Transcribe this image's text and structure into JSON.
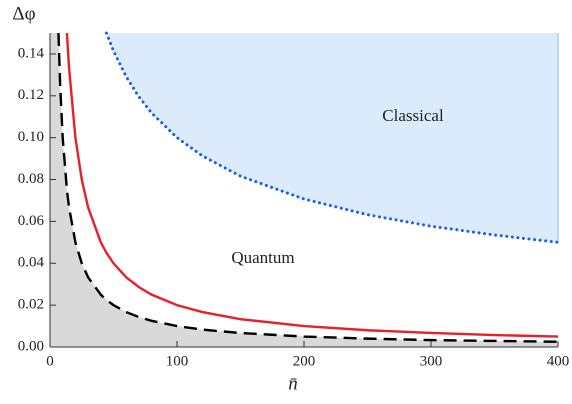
{
  "chart_data": {
    "type": "line",
    "x_label": "n̄",
    "y_label": "Δφ",
    "x": [
      6.67,
      8,
      10,
      13.33,
      15,
      20,
      25,
      30,
      40,
      44.44,
      50,
      60,
      70,
      80,
      100,
      120,
      150,
      200,
      250,
      300,
      350,
      400
    ],
    "series": [
      {
        "color": "#000000",
        "style": "dashed",
        "fill": "below",
        "fill_color": "#d9d9d9",
        "values": [
          0.15,
          0.125,
          0.1,
          0.075,
          0.0667,
          0.05,
          0.04,
          0.0333,
          0.025,
          0.0225,
          0.02,
          0.0167,
          0.0143,
          0.0125,
          0.01,
          0.0083,
          0.0067,
          0.005,
          0.004,
          0.0033,
          0.0029,
          0.0025
        ]
      },
      {
        "color": "#e8202a",
        "style": "solid",
        "values": [
          null,
          null,
          null,
          0.15,
          0.1333,
          0.1,
          0.08,
          0.0667,
          0.05,
          0.045,
          0.04,
          0.0333,
          0.0286,
          0.025,
          0.02,
          0.0167,
          0.0133,
          0.01,
          0.008,
          0.0067,
          0.0057,
          0.005
        ]
      },
      {
        "color": "#1a5ee8",
        "style": "dotted",
        "fill": "above",
        "fill_color": "#dcebfb",
        "values": [
          null,
          null,
          null,
          null,
          null,
          null,
          null,
          null,
          null,
          0.15,
          0.1414,
          0.1291,
          0.1195,
          0.1118,
          0.1,
          0.0913,
          0.0816,
          0.0707,
          0.0632,
          0.0577,
          0.0535,
          0.05
        ]
      }
    ],
    "annotations": [
      "Classical",
      "Quantum"
    ],
    "xlim": [
      0,
      400
    ],
    "ylim": [
      0,
      0.15
    ],
    "xticks": [
      0,
      100,
      200,
      300,
      400
    ],
    "yticks": [
      {
        "value": 0,
        "label": "0.00"
      },
      {
        "value": 0.02,
        "label": "0.02"
      },
      {
        "value": 0.04,
        "label": "0.04"
      },
      {
        "value": 0.06,
        "label": "0.06"
      },
      {
        "value": 0.08,
        "label": "0.08"
      },
      {
        "value": 0.1,
        "label": "0.10"
      },
      {
        "value": 0.12,
        "label": "0.12"
      },
      {
        "value": 0.14,
        "label": "0.14"
      }
    ]
  }
}
